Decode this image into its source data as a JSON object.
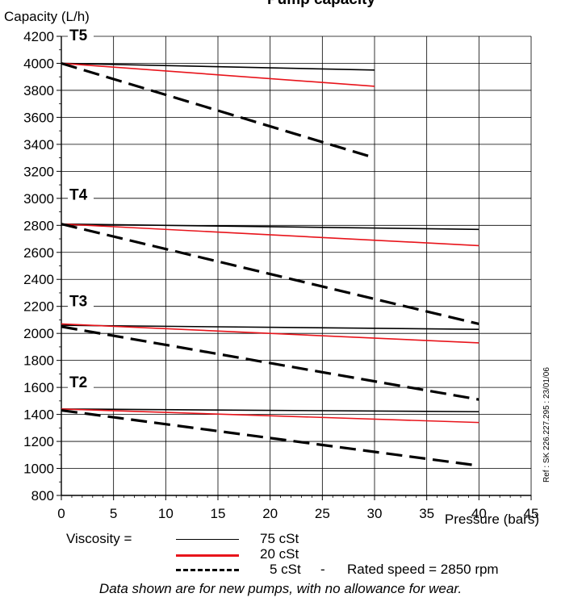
{
  "chart_data": {
    "type": "line",
    "title": "Pump capacity",
    "ylabel": "Capacity (L/h)",
    "xlabel": "Pressure (bars)",
    "xlim": [
      0,
      45
    ],
    "ylim": [
      800,
      4200
    ],
    "xticks": [
      "0",
      "5",
      "10",
      "15",
      "20",
      "25",
      "30",
      "35",
      "40",
      "45"
    ],
    "yticks": [
      "800",
      "1000",
      "1200",
      "1400",
      "1600",
      "1800",
      "2000",
      "2200",
      "2400",
      "2600",
      "2800",
      "3000",
      "3200",
      "3400",
      "3600",
      "3800",
      "4000",
      "4200"
    ],
    "grid": true,
    "group_labels": [
      {
        "text": "T5",
        "y": 4170
      },
      {
        "text": "T4",
        "y": 2990
      },
      {
        "text": "T3",
        "y": 2200
      },
      {
        "text": "T2",
        "y": 1600
      }
    ],
    "series": [
      {
        "group": "T5",
        "viscosity": "75 cSt",
        "x": [
          0,
          30
        ],
        "values": [
          4000,
          3950
        ]
      },
      {
        "group": "T5",
        "viscosity": "20 cSt",
        "x": [
          0,
          30
        ],
        "values": [
          4000,
          3830
        ]
      },
      {
        "group": "T5",
        "viscosity": "5 cSt",
        "x": [
          0,
          30
        ],
        "values": [
          4000,
          3300
        ]
      },
      {
        "group": "T4",
        "viscosity": "75 cSt",
        "x": [
          0,
          40
        ],
        "values": [
          2810,
          2770
        ]
      },
      {
        "group": "T4",
        "viscosity": "20 cSt",
        "x": [
          0,
          40
        ],
        "values": [
          2810,
          2650
        ]
      },
      {
        "group": "T4",
        "viscosity": "5 cSt",
        "x": [
          0,
          40
        ],
        "values": [
          2810,
          2070
        ]
      },
      {
        "group": "T3",
        "viscosity": "75 cSt",
        "x": [
          0,
          40
        ],
        "values": [
          2060,
          2030
        ]
      },
      {
        "group": "T3",
        "viscosity": "20 cSt",
        "x": [
          0,
          40
        ],
        "values": [
          2070,
          1930
        ]
      },
      {
        "group": "T3",
        "viscosity": "5 cSt",
        "x": [
          0,
          40
        ],
        "values": [
          2050,
          1510
        ]
      },
      {
        "group": "T2",
        "viscosity": "75 cSt",
        "x": [
          0,
          40
        ],
        "values": [
          1440,
          1420
        ]
      },
      {
        "group": "T2",
        "viscosity": "20 cSt",
        "x": [
          0,
          40
        ],
        "values": [
          1440,
          1340
        ]
      },
      {
        "group": "T2",
        "viscosity": "5 cSt",
        "x": [
          0,
          40
        ],
        "values": [
          1430,
          1020
        ]
      }
    ],
    "line_styles": {
      "75 cSt": {
        "color": "#000000",
        "dash": "solid",
        "width": 1.6
      },
      "20 cSt": {
        "color": "#e8141b",
        "dash": "solid",
        "width": 1.6
      },
      "5 cSt": {
        "color": "#000000",
        "dash": "dashed",
        "width": 3.2
      }
    }
  },
  "legend": {
    "prefix": "Viscosity  =",
    "entries": [
      "75 cSt",
      "20 cSt",
      "5 cSt"
    ],
    "separator": "-",
    "note": "Rated speed = 2850 rpm"
  },
  "footnote": "Data shown are for new pumps, with no allowance for wear.",
  "reference": "Ref : SK 226.227.295 : 23/01/06"
}
